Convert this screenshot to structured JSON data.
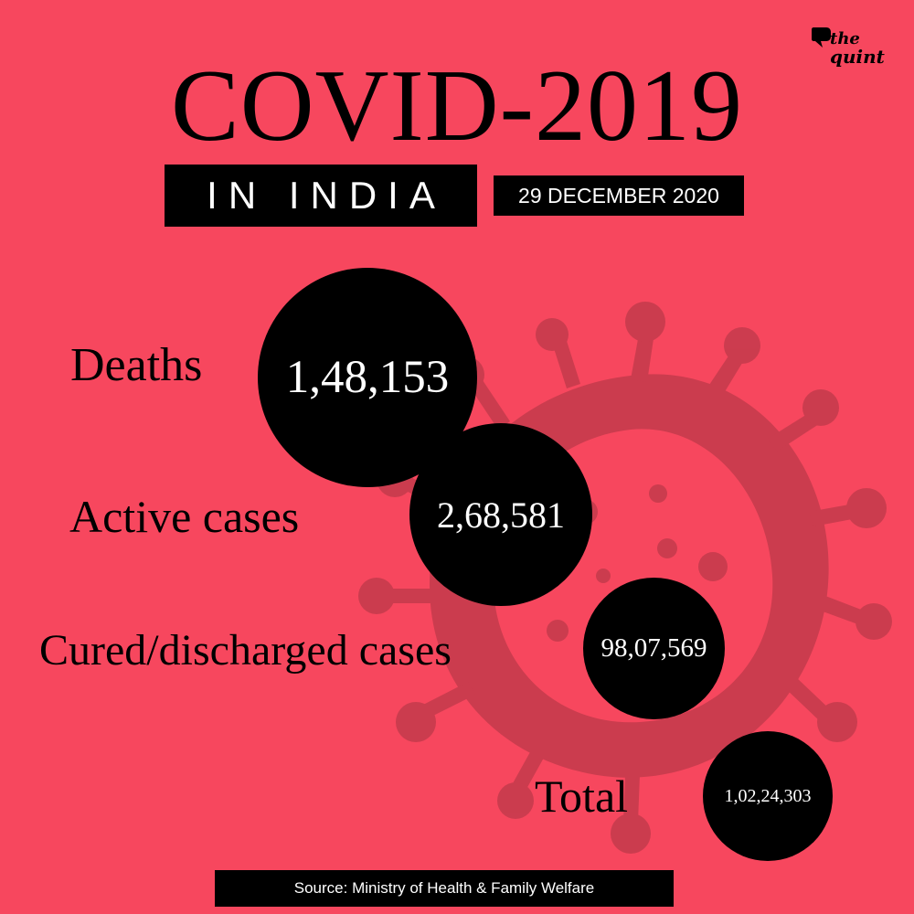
{
  "brand": {
    "logo_line1": "the",
    "logo_line2": "quint"
  },
  "header": {
    "title": "COVID-2019",
    "subtitle": "IN INDIA",
    "date": "29 DECEMBER 2020"
  },
  "stats": [
    {
      "label": "Deaths",
      "value": "1,48,153"
    },
    {
      "label": "Active cases",
      "value": "2,68,581"
    },
    {
      "label": "Cured/discharged cases",
      "value": "98,07,569"
    },
    {
      "label": "Total",
      "value": "1,02,24,303"
    }
  ],
  "footer": {
    "source": "Source: Ministry of Health & Family Welfare"
  },
  "colors": {
    "background": "#f7475e",
    "virus": "#c43b4c",
    "text": "#000000",
    "circle": "#000000"
  },
  "decorations": {
    "background_image": "coronavirus-silhouette-icon"
  }
}
